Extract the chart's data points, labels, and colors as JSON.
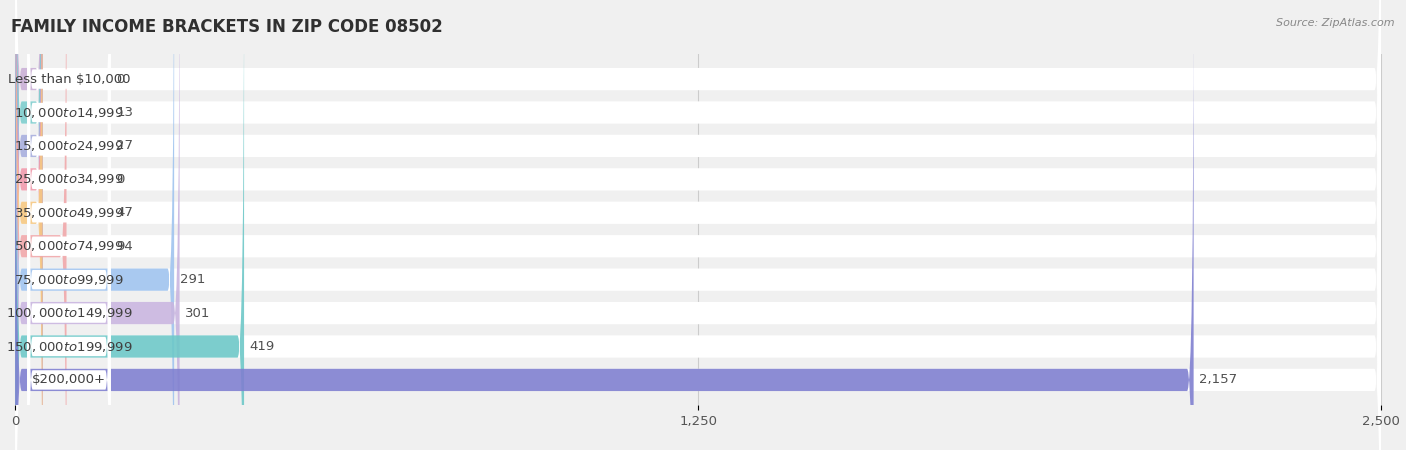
{
  "title": "FAMILY INCOME BRACKETS IN ZIP CODE 08502",
  "source": "Source: ZipAtlas.com",
  "categories": [
    "Less than $10,000",
    "$10,000 to $14,999",
    "$15,000 to $24,999",
    "$25,000 to $34,999",
    "$35,000 to $49,999",
    "$50,000 to $74,999",
    "$75,000 to $99,999",
    "$100,000 to $149,999",
    "$150,000 to $199,999",
    "$200,000+"
  ],
  "values": [
    0,
    13,
    27,
    0,
    47,
    94,
    291,
    301,
    419,
    2157
  ],
  "bar_colors": [
    "#c9b0d5",
    "#7ecece",
    "#a8aedd",
    "#f09aac",
    "#f5c882",
    "#f0a8aa",
    "#a0c4ef",
    "#c9b5df",
    "#6ec8c8",
    "#8080d0"
  ],
  "xlim_max": 2500,
  "xticks": [
    0,
    1250,
    2500
  ],
  "bg_color": "#f0f0f0",
  "row_bg_color": "#ffffff",
  "title_fontsize": 12,
  "label_fontsize": 9.5,
  "value_fontsize": 9.5,
  "min_bar_display": 50
}
